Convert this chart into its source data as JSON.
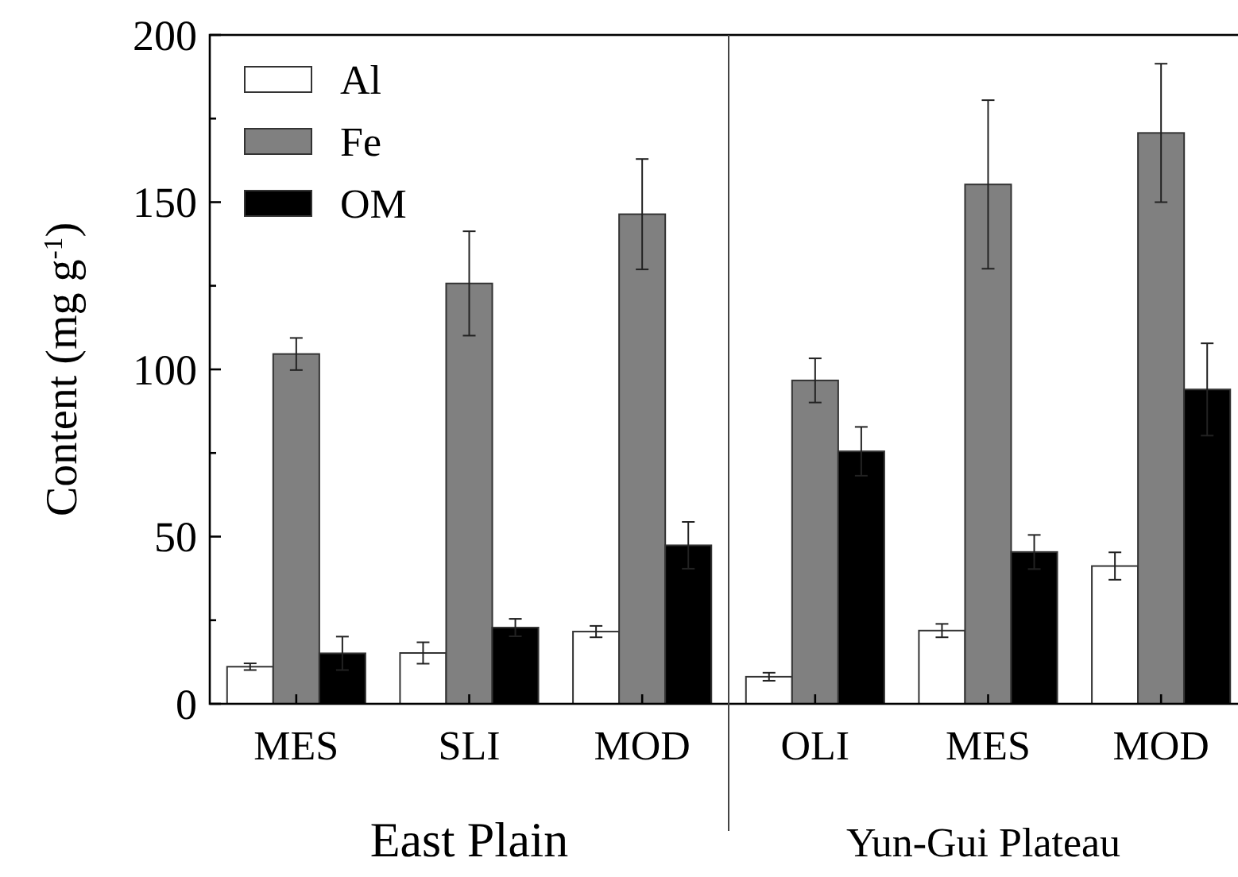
{
  "chart_data": {
    "type": "bar",
    "ylabel": "Content (mg g$^{-1}$)",
    "categories": [
      "MES",
      "SLI",
      "MOD",
      "OLI",
      "MES",
      "MOD"
    ],
    "series": [
      {
        "name": "Al",
        "color": "#ffffff",
        "values": [
          11.1,
          15.2,
          21.6,
          8.1,
          21.9,
          41.2
        ],
        "errors": [
          1,
          3.2,
          1.7,
          1.2,
          2,
          4.1
        ]
      },
      {
        "name": "Fe",
        "color": "#808080",
        "values": [
          104.6,
          125.7,
          146.4,
          96.7,
          155.3,
          170.7
        ],
        "errors": [
          4.8,
          15.6,
          16.5,
          6.6,
          25.2,
          20.7
        ]
      },
      {
        "name": "OM",
        "color": "#000000",
        "values": [
          15.1,
          22.8,
          47.4,
          75.5,
          45.4,
          94
        ],
        "errors": [
          5,
          2.6,
          7,
          7.3,
          5.1,
          13.8
        ]
      }
    ],
    "ylim": [
      0,
      200
    ],
    "yticks": [
      0,
      {
        "value": 25,
        "label": null
      },
      50,
      {
        "value": 75,
        "label": null
      },
      100,
      {
        "value": 125,
        "label": null
      },
      150,
      {
        "value": 175,
        "label": null
      },
      200
    ],
    "annotations": [
      "East Plain",
      "Yun-Gui Plateau"
    ],
    "legend": "top left",
    "grid": false
  }
}
